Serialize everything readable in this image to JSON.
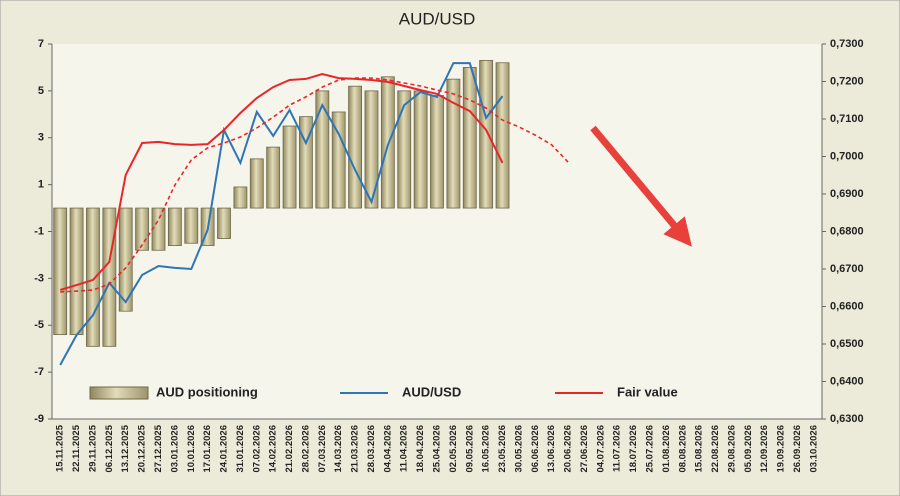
{
  "chart_data": {
    "type": "combo",
    "title": "AUD/USD",
    "categories": [
      "15.11.2025",
      "22.11.2025",
      "29.11.2025",
      "06.12.2025",
      "13.12.2025",
      "20.12.2025",
      "27.12.2025",
      "03.01.2026",
      "10.01.2026",
      "17.01.2026",
      "24.01.2026",
      "31.01.2026",
      "07.02.2026",
      "14.02.2026",
      "21.02.2026",
      "28.02.2026",
      "07.03.2026",
      "14.03.2026",
      "21.03.2026",
      "28.03.2026",
      "04.04.2026",
      "11.04.2026",
      "18.04.2026",
      "25.04.2026",
      "02.05.2026",
      "09.05.2026",
      "16.05.2026",
      "23.05.2026",
      "30.05.2026",
      "06.06.2026",
      "13.06.2026",
      "20.06.2026",
      "27.06.2026",
      "04.07.2026",
      "11.07.2026",
      "18.07.2026",
      "25.07.2026",
      "01.08.2026",
      "08.08.2026",
      "15.08.2026",
      "22.08.2026",
      "29.08.2026",
      "05.09.2026",
      "12.09.2026",
      "19.09.2026",
      "26.09.2026",
      "03.10.2026"
    ],
    "series": [
      {
        "name": "AUD positioning",
        "type": "bar",
        "axis": "y",
        "color": "#bdb58c",
        "values": [
          -5.4,
          -5.4,
          -5.9,
          -5.9,
          -4.4,
          -1.8,
          -1.8,
          -1.6,
          -1.5,
          -1.6,
          -1.3,
          0.9,
          2.1,
          2.6,
          3.5,
          3.9,
          5.0,
          4.1,
          5.2,
          5.0,
          5.6,
          5.0,
          5.0,
          4.8,
          5.5,
          6.0,
          6.3,
          6.2,
          null,
          null,
          null,
          null,
          null,
          null,
          null,
          null,
          null,
          null,
          null,
          null,
          null,
          null,
          null,
          null,
          null,
          null,
          null
        ]
      },
      {
        "name": "AUD/USD",
        "type": "line",
        "axis": "y2",
        "color": "#2e75b6",
        "values": [
          0.6444,
          0.6524,
          0.6577,
          0.6663,
          0.6612,
          0.6684,
          0.6708,
          0.6703,
          0.67,
          0.6804,
          0.7071,
          0.6983,
          0.7119,
          0.7055,
          0.7124,
          0.7036,
          0.7137,
          0.706,
          0.6964,
          0.6879,
          0.7031,
          0.7137,
          0.7172,
          0.7159,
          0.7249,
          0.7249,
          0.7103,
          0.7161,
          null,
          null,
          null,
          null,
          null,
          null,
          null,
          null,
          null,
          null,
          null,
          null,
          null,
          null,
          null,
          null,
          null,
          null,
          null
        ]
      },
      {
        "name": "Fair value",
        "type": "line",
        "axis": "y2",
        "color": "#e8262a",
        "values": [
          0.6644,
          0.6657,
          0.6671,
          0.6719,
          0.6951,
          0.7036,
          0.7039,
          0.7033,
          0.7031,
          0.7033,
          0.7071,
          0.7116,
          0.7156,
          0.7185,
          0.7204,
          0.7207,
          0.722,
          0.7209,
          0.7207,
          0.7204,
          0.7199,
          0.7188,
          0.7177,
          0.7167,
          0.7143,
          0.7121,
          0.7071,
          0.6983,
          null,
          null,
          null,
          null,
          null,
          null,
          null,
          null,
          null,
          null,
          null,
          null,
          null,
          null,
          null,
          null,
          null,
          null,
          null
        ]
      },
      {
        "type": "line",
        "axis": "y2",
        "color": "#e8262a",
        "style": "dashed",
        "values": [
          0.6639,
          0.6641,
          0.6644,
          0.666,
          0.6703,
          0.6764,
          0.6831,
          0.6924,
          0.6991,
          0.7023,
          0.7036,
          0.7052,
          0.7076,
          0.7105,
          0.7137,
          0.7159,
          0.7185,
          0.7204,
          0.7209,
          0.7209,
          0.7204,
          0.7196,
          0.7188,
          0.7177,
          0.7167,
          0.7151,
          0.7129,
          0.7097,
          0.7079,
          0.7057,
          0.7031,
          0.6985,
          null,
          null,
          null,
          null,
          null,
          null,
          null,
          null,
          null,
          null,
          null,
          null,
          null,
          null,
          null
        ]
      }
    ],
    "ylim": [
      -9,
      7
    ],
    "yticks": [
      -9,
      -7,
      -5,
      -3,
      -1,
      1,
      3,
      5,
      7
    ],
    "y2lim": [
      0.63,
      0.73
    ],
    "y2ticks": [
      {
        "value": 0.63,
        "label": "0,6300"
      },
      {
        "value": 0.64,
        "label": "0,6400"
      },
      {
        "value": 0.65,
        "label": "0,6500"
      },
      {
        "value": 0.66,
        "label": "0,6600"
      },
      {
        "value": 0.67,
        "label": "0,6700"
      },
      {
        "value": 0.68,
        "label": "0,6800"
      },
      {
        "value": 0.69,
        "label": "0,6900"
      },
      {
        "value": 0.7,
        "label": "0,7000"
      },
      {
        "value": 0.71,
        "label": "0,7100"
      },
      {
        "value": 0.72,
        "label": "0,7200"
      },
      {
        "value": 0.73,
        "label": "0,7300"
      }
    ],
    "grid": false,
    "legend": "bottom"
  }
}
